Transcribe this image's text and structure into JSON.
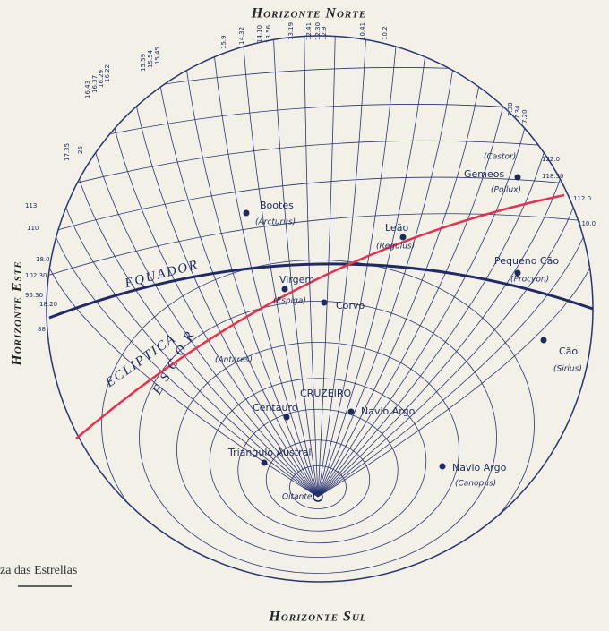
{
  "labels": {
    "north": "Horizonte Norte",
    "south": "Horizonte Sul",
    "east": "Horizonte Este",
    "caption": "za das Estrellas",
    "equator": "EQUADOR",
    "ecliptic": "ECLIPTICA",
    "scorpio": "E S C O R"
  },
  "stars": [
    {
      "name": "Bootes",
      "note": "(Arcturus)"
    },
    {
      "name": "Leão",
      "note": "(Regulus)"
    },
    {
      "name": "Gemeos",
      "note": "(Pollux)"
    },
    {
      "name": "Pequeno Cão",
      "note": "(Procyon)"
    },
    {
      "name": "Virgem",
      "note": "(Espiga)"
    },
    {
      "name": "Corvo",
      "note": "(Castor)"
    },
    {
      "name": "Cão",
      "note": "(Sirius)"
    },
    {
      "name": "Navio Argo",
      "note": "(Canopus)"
    },
    {
      "name": "Navio Argo",
      "note": "(Antares)"
    },
    {
      "name": "Centauro",
      "note": "CRUZEIRO"
    },
    {
      "name": "Triangulo Austral",
      "note": "Oitante"
    }
  ],
  "tick_labels": [
    "15.9",
    "14.32",
    "14.10",
    "13.56",
    "13.19",
    "12.41",
    "12.30",
    "12.9",
    "10.41",
    "10.2",
    "16.43",
    "16.37",
    "16.29",
    "16.22",
    "15.59",
    "15.54",
    "15.45",
    "17.35",
    "26",
    "7.38",
    "7.34",
    "7.20",
    "122.0",
    "118.30",
    "112.0",
    "110.0",
    "113",
    "110",
    "18.0",
    "102.30",
    "95.30",
    "18.20",
    "88"
  ]
}
